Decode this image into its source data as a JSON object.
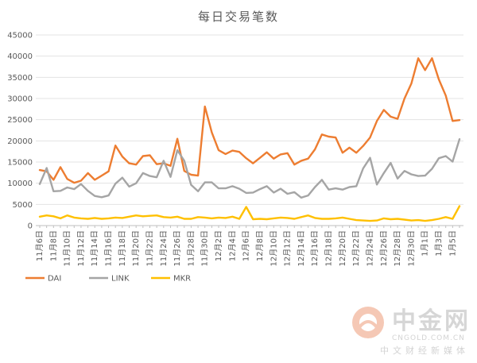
{
  "chart_data": {
    "type": "line",
    "title": "每日交易笔数",
    "ylim": [
      0,
      45000
    ],
    "yticks": [
      "0",
      "5000",
      "10000",
      "15000",
      "20000",
      "25000",
      "30000",
      "35000",
      "40000",
      "45000"
    ],
    "x_labels": [
      "11月6日",
      "11月8日",
      "11月10日",
      "11月12日",
      "11月14日",
      "11月16日",
      "11月18日",
      "11月20日",
      "11月22日",
      "11月24日",
      "11月26日",
      "11月28日",
      "11月30日",
      "12月2日",
      "12月4日",
      "12月6日",
      "12月8日",
      "12月10日",
      "12月12日",
      "12月14日",
      "12月16日",
      "12月18日",
      "12月20日",
      "12月22日",
      "12月24日",
      "12月26日",
      "12月28日",
      "12月30日",
      "1月1日",
      "1月3日",
      "1月5日"
    ],
    "legend_position": "bottom-left",
    "grid": "horizontal",
    "series": [
      {
        "name": "DAI",
        "color": "#ED7D31",
        "values": [
          13100,
          12800,
          10800,
          13800,
          11000,
          10100,
          10600,
          12400,
          10800,
          11800,
          12800,
          18900,
          16300,
          14700,
          14400,
          16400,
          16600,
          14500,
          14700,
          14100,
          20500,
          12900,
          12000,
          11800,
          28100,
          22000,
          17800,
          16900,
          17700,
          17400,
          15900,
          14700,
          16000,
          17300,
          15800,
          16800,
          17100,
          14400,
          15300,
          15800,
          18000,
          21500,
          21000,
          20800,
          17200,
          18400,
          17200,
          18800,
          20800,
          24700,
          27300,
          25700,
          25200,
          30000,
          33500,
          39500,
          36700,
          39500,
          34500,
          30700,
          24700,
          24900
        ]
      },
      {
        "name": "LINK",
        "color": "#A5A5A5",
        "values": [
          9800,
          13600,
          8100,
          8200,
          9000,
          8600,
          9800,
          8200,
          7000,
          6700,
          7100,
          9900,
          11300,
          9200,
          10000,
          12400,
          11700,
          11400,
          15300,
          11500,
          17800,
          15300,
          9600,
          8100,
          10200,
          10200,
          8800,
          8800,
          9300,
          8700,
          7700,
          7800,
          8600,
          9300,
          7800,
          8700,
          7500,
          7900,
          6600,
          7100,
          9100,
          10800,
          8500,
          8800,
          8500,
          9100,
          9300,
          13500,
          16000,
          9700,
          12400,
          14800,
          11100,
          12900,
          12100,
          11700,
          11800,
          13400,
          15900,
          16400,
          15100,
          20400
        ]
      },
      {
        "name": "MKR",
        "color": "#FFC000",
        "values": [
          2100,
          2400,
          2200,
          1700,
          2400,
          1900,
          1700,
          1600,
          1800,
          1600,
          1700,
          1900,
          1800,
          2100,
          2400,
          2200,
          2300,
          2400,
          2000,
          1900,
          2100,
          1600,
          1600,
          2000,
          1900,
          1700,
          1900,
          1800,
          2100,
          1600,
          4400,
          1500,
          1600,
          1500,
          1700,
          1900,
          1800,
          1600,
          2000,
          2400,
          1800,
          1600,
          1600,
          1700,
          1900,
          1600,
          1300,
          1200,
          1100,
          1200,
          1700,
          1500,
          1600,
          1400,
          1200,
          1300,
          1100,
          1300,
          1600,
          2000,
          1600,
          4600
        ]
      }
    ]
  },
  "watermark": {
    "brand": "中金网",
    "url": "CNGOLD.COM.CN",
    "tagline": "中文财经新媒体"
  }
}
